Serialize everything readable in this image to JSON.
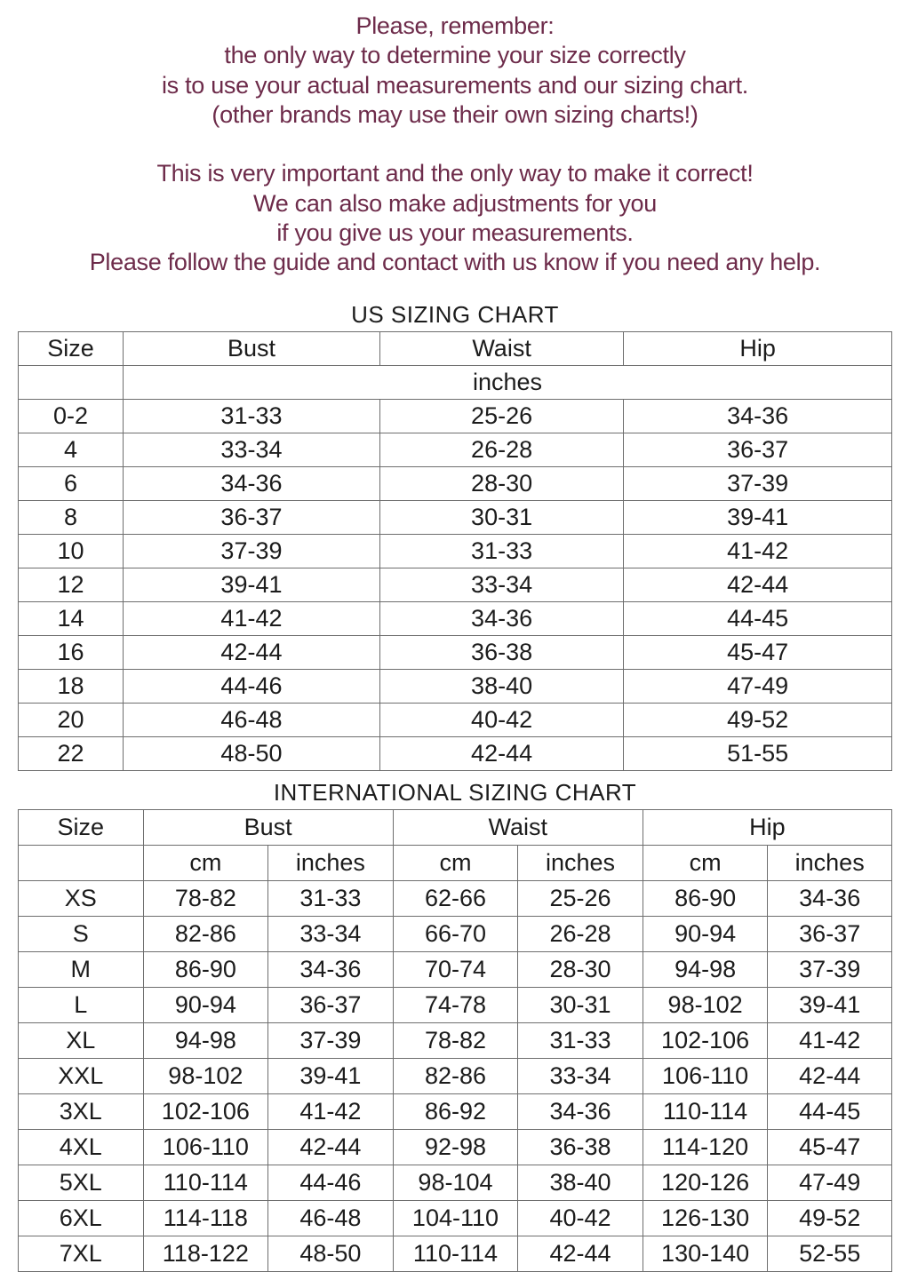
{
  "colors": {
    "intro_text": "#6d2b4a",
    "table_text": "#1c1c1c",
    "table_border": "#6e6e6e",
    "background": "#ffffff"
  },
  "intro": {
    "lines": [
      "Please, remember:",
      "the only way to determine your size correctly",
      "is to use your actual measurements and our sizing chart.",
      "(other brands may use their own sizing charts!)",
      "",
      "This is very important and the only way to make it correct!",
      "We can also make adjustments for you",
      "if you give us your measurements.",
      "Please follow the guide and contact with us know if you need any help."
    ]
  },
  "us_chart": {
    "title": "US SIZING CHART",
    "columns": [
      "Size",
      "Bust",
      "Waist",
      "Hip"
    ],
    "units_label": "inches",
    "rows": [
      {
        "size": "0-2",
        "bust": "31-33",
        "waist": "25-26",
        "hip": "34-36"
      },
      {
        "size": "4",
        "bust": "33-34",
        "waist": "26-28",
        "hip": "36-37"
      },
      {
        "size": "6",
        "bust": "34-36",
        "waist": "28-30",
        "hip": "37-39"
      },
      {
        "size": "8",
        "bust": "36-37",
        "waist": "30-31",
        "hip": "39-41"
      },
      {
        "size": "10",
        "bust": "37-39",
        "waist": "31-33",
        "hip": "41-42"
      },
      {
        "size": "12",
        "bust": "39-41",
        "waist": "33-34",
        "hip": "42-44"
      },
      {
        "size": "14",
        "bust": "41-42",
        "waist": "34-36",
        "hip": "44-45"
      },
      {
        "size": "16",
        "bust": "42-44",
        "waist": "36-38",
        "hip": "45-47"
      },
      {
        "size": "18",
        "bust": "44-46",
        "waist": "38-40",
        "hip": "47-49"
      },
      {
        "size": "20",
        "bust": "46-48",
        "waist": "40-42",
        "hip": "49-52"
      },
      {
        "size": "22",
        "bust": "48-50",
        "waist": "42-44",
        "hip": "51-55"
      }
    ]
  },
  "intl_chart": {
    "title": "INTERNATIONAL SIZING CHART",
    "columns": [
      "Size",
      "Bust",
      "Waist",
      "Hip"
    ],
    "unit_labels": [
      "cm",
      "inches"
    ],
    "rows": [
      {
        "size": "XS",
        "bust_cm": "78-82",
        "bust_in": "31-33",
        "waist_cm": "62-66",
        "waist_in": "25-26",
        "hip_cm": "86-90",
        "hip_in": "34-36"
      },
      {
        "size": "S",
        "bust_cm": "82-86",
        "bust_in": "33-34",
        "waist_cm": "66-70",
        "waist_in": "26-28",
        "hip_cm": "90-94",
        "hip_in": "36-37"
      },
      {
        "size": "M",
        "bust_cm": "86-90",
        "bust_in": "34-36",
        "waist_cm": "70-74",
        "waist_in": "28-30",
        "hip_cm": "94-98",
        "hip_in": "37-39"
      },
      {
        "size": "L",
        "bust_cm": "90-94",
        "bust_in": "36-37",
        "waist_cm": "74-78",
        "waist_in": "30-31",
        "hip_cm": "98-102",
        "hip_in": "39-41"
      },
      {
        "size": "XL",
        "bust_cm": "94-98",
        "bust_in": "37-39",
        "waist_cm": "78-82",
        "waist_in": "31-33",
        "hip_cm": "102-106",
        "hip_in": "41-42"
      },
      {
        "size": "XXL",
        "bust_cm": "98-102",
        "bust_in": "39-41",
        "waist_cm": "82-86",
        "waist_in": "33-34",
        "hip_cm": "106-110",
        "hip_in": "42-44"
      },
      {
        "size": "3XL",
        "bust_cm": "102-106",
        "bust_in": "41-42",
        "waist_cm": "86-92",
        "waist_in": "34-36",
        "hip_cm": "110-114",
        "hip_in": "44-45"
      },
      {
        "size": "4XL",
        "bust_cm": "106-110",
        "bust_in": "42-44",
        "waist_cm": "92-98",
        "waist_in": "36-38",
        "hip_cm": "114-120",
        "hip_in": "45-47"
      },
      {
        "size": "5XL",
        "bust_cm": "110-114",
        "bust_in": "44-46",
        "waist_cm": "98-104",
        "waist_in": "38-40",
        "hip_cm": "120-126",
        "hip_in": "47-49"
      },
      {
        "size": "6XL",
        "bust_cm": "114-118",
        "bust_in": "46-48",
        "waist_cm": "104-110",
        "waist_in": "40-42",
        "hip_cm": "126-130",
        "hip_in": "49-52"
      },
      {
        "size": "7XL",
        "bust_cm": "118-122",
        "bust_in": "48-50",
        "waist_cm": "110-114",
        "waist_in": "42-44",
        "hip_cm": "130-140",
        "hip_in": "52-55"
      }
    ]
  }
}
